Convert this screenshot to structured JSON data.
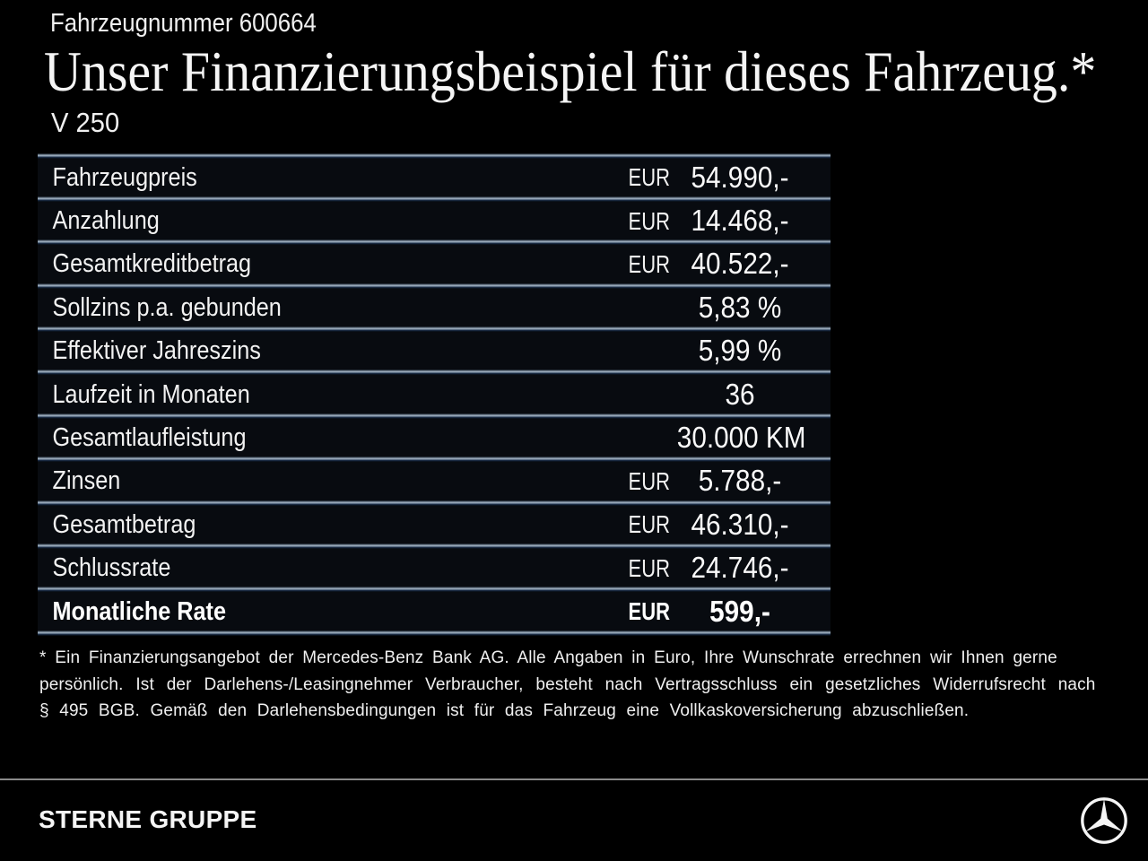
{
  "header": {
    "vehicle_number": "Fahrzeugnummer 600664",
    "title": "Unser Finanzierungsbeispiel für dieses Fahrzeug.*",
    "model": "V 250"
  },
  "table": {
    "rows": [
      {
        "label": "Fahrzeugpreis",
        "currency": "EUR",
        "value": "54.990,-",
        "bold": false
      },
      {
        "label": "Anzahlung",
        "currency": "EUR",
        "value": "14.468,-",
        "bold": false
      },
      {
        "label": "Gesamtkreditbetrag",
        "currency": "EUR",
        "value": "40.522,-",
        "bold": false
      },
      {
        "label": "Sollzins p.a. gebunden",
        "currency": "",
        "value": "5,83 %",
        "bold": false
      },
      {
        "label": "Effektiver Jahreszins",
        "currency": "",
        "value": "5,99 %",
        "bold": false
      },
      {
        "label": "Laufzeit in Monaten",
        "currency": "",
        "value": "36",
        "bold": false
      },
      {
        "label": "Gesamtlaufleistung",
        "currency": "",
        "value": "30.000 KM",
        "bold": false
      },
      {
        "label": "Zinsen",
        "currency": "EUR",
        "value": "5.788,-",
        "bold": false
      },
      {
        "label": "Gesamtbetrag",
        "currency": "EUR",
        "value": "46.310,-",
        "bold": false
      },
      {
        "label": "Schlussrate",
        "currency": "EUR",
        "value": "24.746,-",
        "bold": false
      },
      {
        "label": "Monatliche Rate",
        "currency": "EUR",
        "value": "599,-",
        "bold": true
      }
    ]
  },
  "footnote": {
    "lines": [
      "* Ein Finanzierungsangebot der Mercedes-Benz Bank AG. Alle Angaben in Euro, Ihre Wunschrate errechnen wir Ihnen gerne",
      "persönlich. Ist der Darlehens-/Leasingnehmer Verbraucher, besteht nach Vertragsschluss ein gesetzliches Widerrufsrecht nach",
      "§ 495 BGB. Gemäß den Darlehensbedingungen ist für das Fahrzeug eine Vollkaskoversicherung abzuschließen."
    ]
  },
  "footer": {
    "dealer_name": "STERNE GRUPPE",
    "logo": "mercedes-star-icon"
  },
  "colors": {
    "background": "#000000",
    "text": "#f2f2f2",
    "separator_light": "#b2bfca",
    "separator_dark": "#1b2d44",
    "footer_separator": "#868686"
  }
}
